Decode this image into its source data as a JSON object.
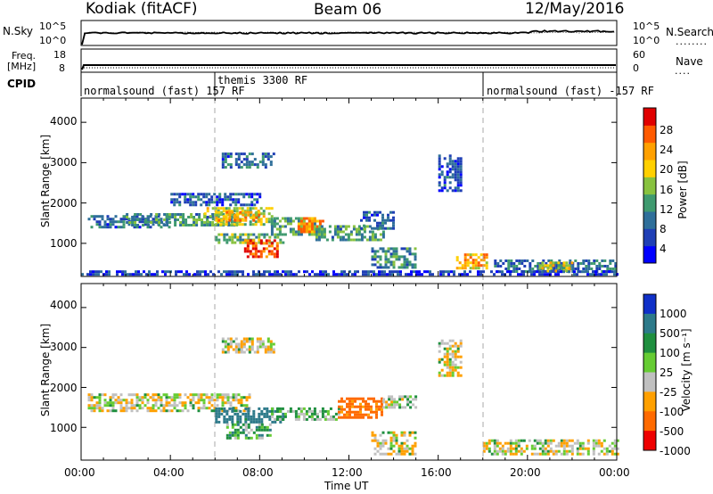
{
  "header": {
    "station": "Kodiak (fitACF)",
    "beam": "Beam 06",
    "date": "12/May/2016"
  },
  "noise_panel": {
    "left_label": "N.Sky",
    "right_label": "N.Search",
    "left_top_tick": "10^5",
    "left_bottom_tick": "10^0",
    "right_top_tick": "10^5",
    "right_bottom_tick": "10^0",
    "legend_marker": "........"
  },
  "freq_panel": {
    "left_label_line1": "Freq.",
    "left_label_line2": "[MHz]",
    "left_top_tick": "18",
    "left_bottom_tick": "8",
    "right_label": "Nave",
    "right_top_tick": "60",
    "right_bottom_tick": "0",
    "legend_marker": "...."
  },
  "cpid_panel": {
    "label": "CPID",
    "segments": [
      {
        "start_hour": 0.0,
        "label": "normalsound (fast) 157 RF"
      },
      {
        "start_hour": 6.0,
        "label": "themis 3300 RF"
      },
      {
        "start_hour": 18.0,
        "label": "normalsound (fast) -157 RF"
      }
    ]
  },
  "power_panel": {
    "ylabel": "Slant Range [km]",
    "yticks": [
      "1000",
      "2000",
      "3000",
      "4000"
    ],
    "colorbar_label": "Power [dB]",
    "colorbar_ticks": [
      "4",
      "8",
      "12",
      "16",
      "20",
      "24",
      "28"
    ]
  },
  "velocity_panel": {
    "ylabel": "Slant Range [km]",
    "yticks": [
      "1000",
      "2000",
      "3000",
      "4000"
    ],
    "colorbar_label": "Velocity [m s⁻¹]",
    "colorbar_ticks": [
      "1000",
      "500",
      "100",
      "25",
      "-25",
      "-100",
      "-500",
      "-1000"
    ]
  },
  "xaxis": {
    "label": "Time UT",
    "ticks": [
      "00:00",
      "04:00",
      "08:00",
      "12:00",
      "16:00",
      "20:00",
      "00:00"
    ]
  },
  "colors": {
    "power_scale": [
      "#0000ff",
      "#1f3fb5",
      "#2f6f9a",
      "#3f9a6f",
      "#88c23f",
      "#ffd000",
      "#ffa000",
      "#ff5a00",
      "#e00000"
    ],
    "velocity_scale": [
      "#1030c8",
      "#2d7a8a",
      "#1f8f3f",
      "#66cc33",
      "#c0c0c0",
      "#ffa000",
      "#ff6a00",
      "#ee0000"
    ],
    "trace": "#000000",
    "dashed_marker": "#aaaaaa"
  },
  "chart_data": {
    "type": "heatmap",
    "title": "Kodiak (fitACF)",
    "subtitle": "Beam 06",
    "date": "12/May/2016",
    "xlabel": "Time UT",
    "x_range_hours": [
      0,
      24
    ],
    "y_range_km": [
      180,
      4600
    ],
    "power": {
      "label": "Power [dB]",
      "range": [
        0,
        32
      ],
      "regions": [
        {
          "t0": 0.3,
          "t1": 4.0,
          "r0": 1380,
          "r1": 1700,
          "db": 8
        },
        {
          "t0": 2.0,
          "t1": 7.0,
          "r0": 1450,
          "r1": 1750,
          "db": 12
        },
        {
          "t0": 5.5,
          "t1": 8.5,
          "r0": 1500,
          "r1": 1900,
          "db": 17
        },
        {
          "t0": 6.0,
          "t1": 8.0,
          "r0": 1600,
          "r1": 1800,
          "db": 22
        },
        {
          "t0": 4.0,
          "t1": 8.0,
          "r0": 1950,
          "r1": 2250,
          "db": 7
        },
        {
          "t0": 6.3,
          "t1": 8.6,
          "r0": 2900,
          "r1": 3250,
          "db": 8
        },
        {
          "t0": 6.0,
          "t1": 9.0,
          "r0": 1000,
          "r1": 1250,
          "db": 14
        },
        {
          "t0": 7.3,
          "t1": 8.8,
          "r0": 700,
          "r1": 1100,
          "db": 28
        },
        {
          "t0": 8.5,
          "t1": 10.5,
          "r0": 1250,
          "r1": 1650,
          "db": 13
        },
        {
          "t0": 9.7,
          "t1": 10.8,
          "r0": 1300,
          "r1": 1650,
          "db": 24
        },
        {
          "t0": 10.5,
          "t1": 13.5,
          "r0": 1100,
          "r1": 1450,
          "db": 12
        },
        {
          "t0": 13.0,
          "t1": 15.0,
          "r0": 400,
          "r1": 900,
          "db": 10
        },
        {
          "t0": 12.5,
          "t1": 14.0,
          "r0": 1400,
          "r1": 1800,
          "db": 7
        },
        {
          "t0": 16.0,
          "t1": 17.0,
          "r0": 2300,
          "r1": 3200,
          "db": 6
        },
        {
          "t0": 16.8,
          "t1": 18.2,
          "r0": 400,
          "r1": 750,
          "db": 22
        },
        {
          "t0": 18.5,
          "t1": 24.0,
          "r0": 300,
          "r1": 600,
          "db": 9
        },
        {
          "t0": 20.5,
          "t1": 22.0,
          "r0": 350,
          "r1": 550,
          "db": 18
        },
        {
          "t0": 0.0,
          "t1": 24.0,
          "r0": 200,
          "r1": 330,
          "db": 5
        }
      ]
    },
    "velocity": {
      "label": "Velocity [m s⁻¹]",
      "range": [
        -1000,
        1000
      ],
      "regions": [
        {
          "t0": 0.3,
          "t1": 7.5,
          "r0": 1400,
          "r1": 1850,
          "v": 0
        },
        {
          "t0": 6.0,
          "t1": 9.0,
          "r0": 1100,
          "r1": 1500,
          "v": 150
        },
        {
          "t0": 6.5,
          "t1": 8.5,
          "r0": 700,
          "r1": 1100,
          "v": 60
        },
        {
          "t0": 8.5,
          "t1": 11.5,
          "r0": 1200,
          "r1": 1500,
          "v": 40
        },
        {
          "t0": 11.5,
          "t1": 13.5,
          "r0": 1250,
          "r1": 1750,
          "v": -150
        },
        {
          "t0": 13.5,
          "t1": 15.0,
          "r0": 1500,
          "r1": 1800,
          "v": 10
        },
        {
          "t0": 13.0,
          "t1": 15.0,
          "r0": 350,
          "r1": 900,
          "v": 0
        },
        {
          "t0": 18.0,
          "t1": 24.0,
          "r0": 300,
          "r1": 700,
          "v": 0
        },
        {
          "t0": 6.3,
          "t1": 8.6,
          "r0": 2900,
          "r1": 3250,
          "v": 0
        },
        {
          "t0": 16.0,
          "t1": 17.0,
          "r0": 2300,
          "r1": 3200,
          "v": 0
        }
      ]
    }
  }
}
